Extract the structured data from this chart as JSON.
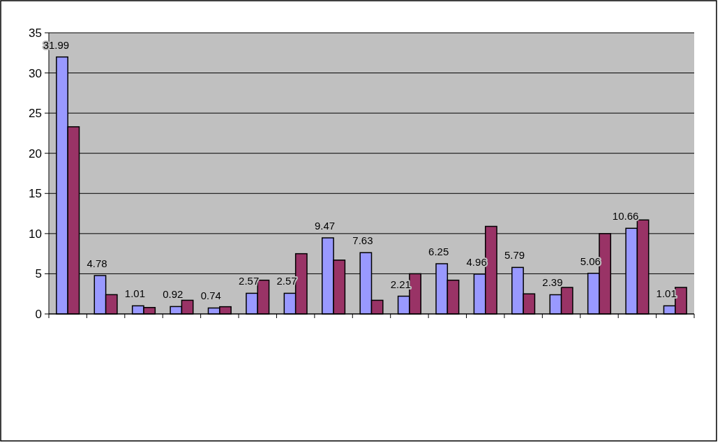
{
  "chart_data": {
    "type": "bar",
    "categories": [
      null,
      null,
      null,
      null,
      null,
      null,
      null,
      null,
      null,
      null,
      null,
      null,
      null,
      null,
      null,
      null,
      null
    ],
    "series": [
      {
        "color": "#9999ff",
        "values": [
          31.99,
          4.78,
          1.01,
          0.92,
          0.74,
          2.57,
          2.57,
          9.47,
          7.63,
          2.21,
          6.25,
          4.96,
          5.79,
          2.39,
          5.06,
          10.66,
          1.01
        ],
        "value_labels": [
          "31.99",
          "4.78",
          "1.01",
          "0.92",
          "0.74",
          "2.57",
          "2.57",
          "9.47",
          "7.63",
          "2.21",
          "6.25",
          "4.96",
          "5.79",
          "2.39",
          "5.06",
          "10.66",
          "1.01"
        ]
      },
      {
        "color": "#993366",
        "values": [
          23.3,
          2.4,
          0.8,
          1.7,
          0.9,
          4.2,
          7.5,
          6.7,
          1.7,
          5.0,
          4.2,
          10.9,
          2.5,
          3.3,
          10.0,
          11.7,
          3.3
        ]
      }
    ],
    "ylim": [
      0,
      35
    ],
    "yticks": [
      0,
      5,
      10,
      15,
      20,
      25,
      30,
      35
    ],
    "grid": "y"
  }
}
